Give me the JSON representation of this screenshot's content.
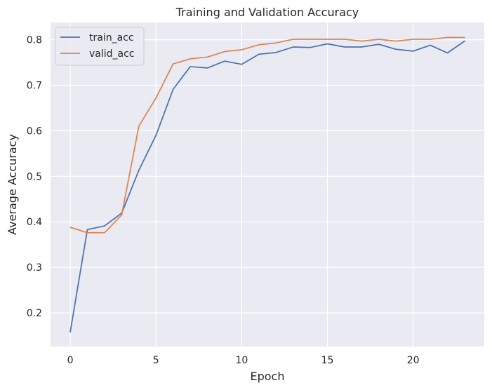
{
  "chart_data": {
    "type": "line",
    "title": "Training and Validation Accuracy",
    "xlabel": "Epoch",
    "ylabel": "Average Accuracy",
    "xlim": [
      -1.15,
      24.15
    ],
    "ylim": [
      0.126,
      0.838
    ],
    "xticks": [
      0,
      5,
      10,
      15,
      20
    ],
    "yticks": [
      0.2,
      0.3,
      0.4,
      0.5,
      0.6,
      0.7,
      0.8
    ],
    "ytick_labels": [
      "0.2",
      "0.3",
      "0.4",
      "0.5",
      "0.6",
      "0.7",
      "0.8"
    ],
    "grid": true,
    "legend_position": "top-left",
    "x": [
      0,
      1,
      2,
      3,
      4,
      5,
      6,
      7,
      8,
      9,
      10,
      11,
      12,
      13,
      14,
      15,
      16,
      17,
      18,
      19,
      20,
      21,
      22,
      23
    ],
    "series": [
      {
        "name": "train_acc",
        "color": "#4c72b0",
        "values": [
          0.158,
          0.383,
          0.391,
          0.419,
          0.513,
          0.59,
          0.691,
          0.741,
          0.738,
          0.753,
          0.746,
          0.768,
          0.772,
          0.784,
          0.783,
          0.791,
          0.784,
          0.784,
          0.79,
          0.779,
          0.775,
          0.788,
          0.771,
          0.797
        ]
      },
      {
        "name": "valid_acc",
        "color": "#dd8452",
        "values": [
          0.388,
          0.376,
          0.376,
          0.415,
          0.61,
          0.672,
          0.747,
          0.758,
          0.762,
          0.774,
          0.778,
          0.789,
          0.793,
          0.801,
          0.801,
          0.801,
          0.801,
          0.797,
          0.801,
          0.797,
          0.801,
          0.801,
          0.805,
          0.805
        ]
      }
    ]
  },
  "colors": {
    "plot_background": "#eaeaf2",
    "grid": "#ffffff",
    "text": "#262626"
  }
}
